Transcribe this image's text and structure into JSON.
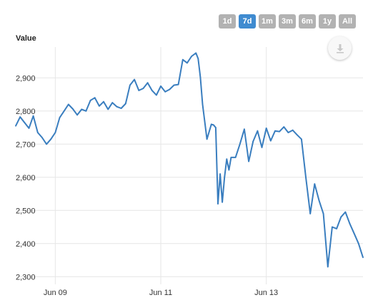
{
  "range_selector": {
    "buttons": [
      "1d",
      "7d",
      "1m",
      "3m",
      "6m",
      "1y",
      "All"
    ],
    "active": "7d"
  },
  "export": {
    "icon": "download-icon"
  },
  "colors": {
    "line": "#3a7ebf",
    "grid": "#e6e6e6",
    "active_button": "#3f8bd0",
    "button": "#b2b2b2"
  },
  "chart_data": {
    "type": "line",
    "ylabel": "Value",
    "xlabel": "",
    "ylim": [
      2277,
      2993
    ],
    "yticks": [
      2300,
      2400,
      2500,
      2600,
      2700,
      2800,
      2900
    ],
    "ytick_labels": [
      "2,300",
      "2,400",
      "2,500",
      "2,600",
      "2,700",
      "2,800",
      "2,900"
    ],
    "xlim": [
      "2014-06-08 06:00",
      "2014-06-14 20:00"
    ],
    "xticks": [
      "2014-06-09",
      "2014-06-11",
      "2014-06-13"
    ],
    "xtick_labels": [
      "Jun 09",
      "Jun 11",
      "Jun 13"
    ],
    "grid": true,
    "series": [
      {
        "x": [
          "2014-06-08 06:00",
          "2014-06-08 08:00",
          "2014-06-08 10:00",
          "2014-06-08 12:00",
          "2014-06-08 14:00",
          "2014-06-08 16:00",
          "2014-06-08 18:00",
          "2014-06-08 20:00",
          "2014-06-08 22:00",
          "2014-06-09 00:00",
          "2014-06-09 02:00",
          "2014-06-09 04:00",
          "2014-06-09 06:00",
          "2014-06-09 08:00",
          "2014-06-09 10:00",
          "2014-06-09 12:00",
          "2014-06-09 14:00",
          "2014-06-09 16:00",
          "2014-06-09 18:00",
          "2014-06-09 20:00",
          "2014-06-09 22:00",
          "2014-06-10 00:00",
          "2014-06-10 02:00",
          "2014-06-10 04:00",
          "2014-06-10 06:00",
          "2014-06-10 08:00",
          "2014-06-10 10:00",
          "2014-06-10 12:00",
          "2014-06-10 14:00",
          "2014-06-10 16:00",
          "2014-06-10 18:00",
          "2014-06-10 20:00",
          "2014-06-10 22:00",
          "2014-06-11 00:00",
          "2014-06-11 02:00",
          "2014-06-11 04:00",
          "2014-06-11 06:00",
          "2014-06-11 08:00",
          "2014-06-11 10:00",
          "2014-06-11 12:00",
          "2014-06-11 14:00",
          "2014-06-11 16:00",
          "2014-06-11 17:00",
          "2014-06-11 18:00",
          "2014-06-11 19:00",
          "2014-06-11 21:00",
          "2014-06-11 23:00",
          "2014-06-12 00:00",
          "2014-06-12 01:00",
          "2014-06-12 02:00",
          "2014-06-12 03:00",
          "2014-06-12 04:00",
          "2014-06-12 05:00",
          "2014-06-12 06:00",
          "2014-06-12 07:00",
          "2014-06-12 08:00",
          "2014-06-12 10:00",
          "2014-06-12 12:00",
          "2014-06-12 14:00",
          "2014-06-12 16:00",
          "2014-06-12 18:00",
          "2014-06-12 20:00",
          "2014-06-12 22:00",
          "2014-06-13 00:00",
          "2014-06-13 02:00",
          "2014-06-13 04:00",
          "2014-06-13 06:00",
          "2014-06-13 08:00",
          "2014-06-13 10:00",
          "2014-06-13 12:00",
          "2014-06-13 14:00",
          "2014-06-13 16:00",
          "2014-06-13 18:00",
          "2014-06-13 20:00",
          "2014-06-13 22:00",
          "2014-06-14 00:00",
          "2014-06-14 02:00",
          "2014-06-14 04:00",
          "2014-06-14 06:00",
          "2014-06-14 08:00",
          "2014-06-14 10:00",
          "2014-06-14 12:00",
          "2014-06-14 14:00",
          "2014-06-14 16:00",
          "2014-06-14 18:00",
          "2014-06-14 20:00"
        ],
        "values": [
          2755,
          2782,
          2765,
          2748,
          2785,
          2735,
          2720,
          2700,
          2715,
          2735,
          2780,
          2800,
          2820,
          2806,
          2788,
          2805,
          2800,
          2832,
          2840,
          2815,
          2828,
          2805,
          2825,
          2813,
          2808,
          2822,
          2878,
          2895,
          2862,
          2868,
          2885,
          2862,
          2848,
          2875,
          2858,
          2865,
          2878,
          2880,
          2955,
          2945,
          2965,
          2975,
          2958,
          2902,
          2820,
          2715,
          2760,
          2758,
          2750,
          2520,
          2610,
          2525,
          2600,
          2655,
          2622,
          2660,
          2660,
          2700,
          2745,
          2648,
          2708,
          2740,
          2690,
          2748,
          2710,
          2740,
          2738,
          2752,
          2735,
          2742,
          2728,
          2715,
          2600,
          2490,
          2580,
          2530,
          2490,
          2330,
          2450,
          2445,
          2480,
          2495,
          2460,
          2430,
          2400,
          2358
        ]
      }
    ]
  }
}
